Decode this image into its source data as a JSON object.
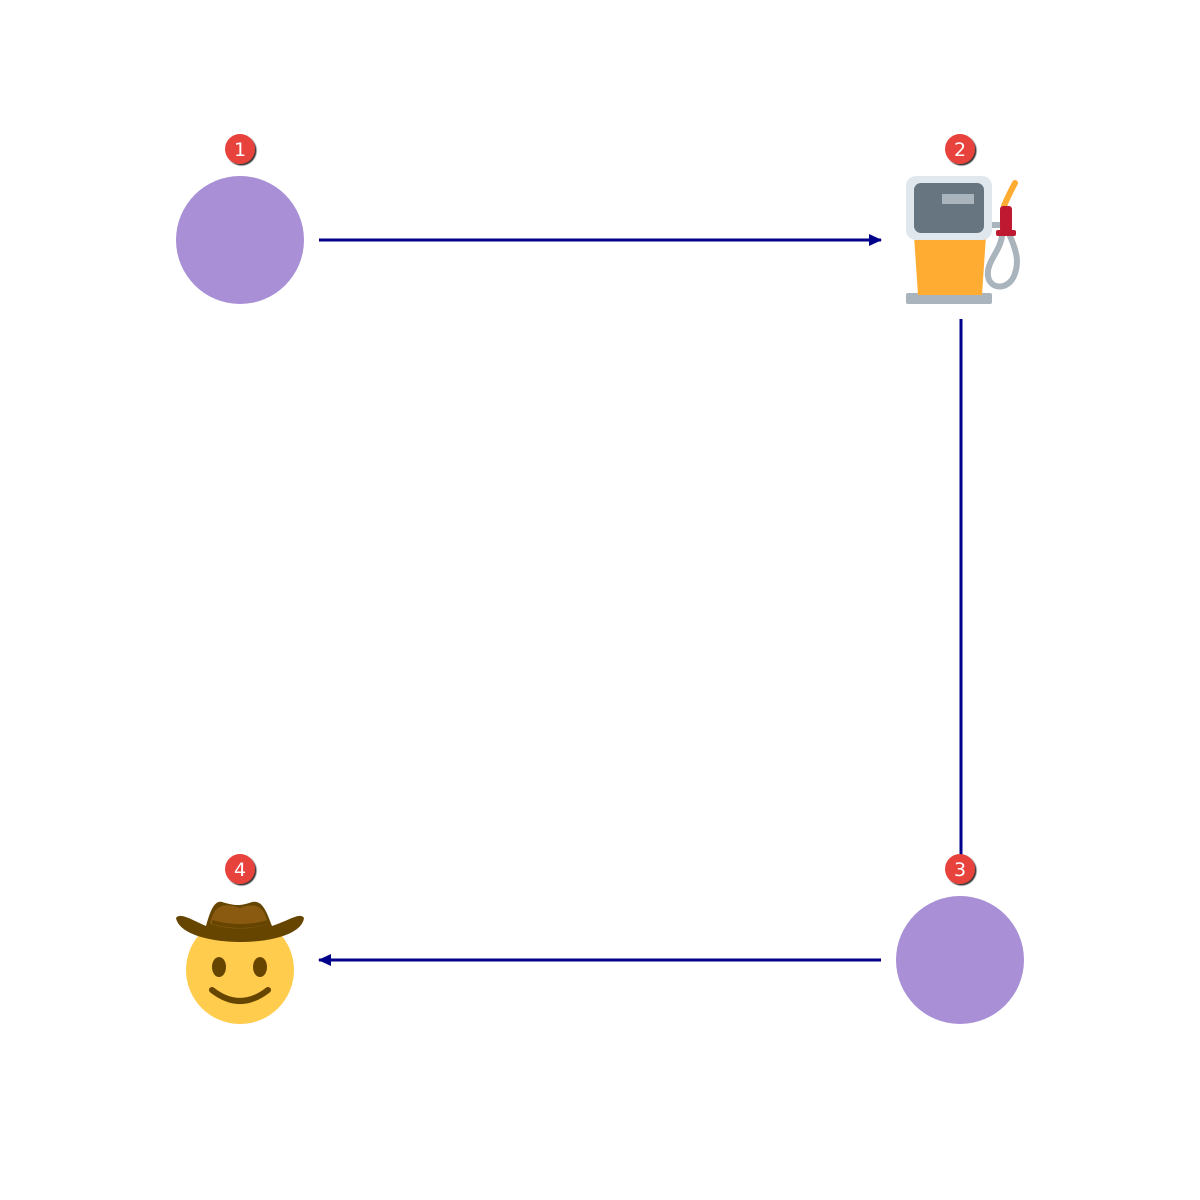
{
  "diagram": {
    "edge_color": "#00008b",
    "badge_color": "#e8423c",
    "nodes": [
      {
        "id": "n1",
        "badge": "1",
        "kind": "circle",
        "color": "#a98fd6"
      },
      {
        "id": "n2",
        "badge": "2",
        "kind": "fuel-pump-icon"
      },
      {
        "id": "n3",
        "badge": "3",
        "kind": "circle",
        "color": "#a98fd6"
      },
      {
        "id": "n4",
        "badge": "4",
        "kind": "cowboy-face-icon"
      }
    ],
    "edges": [
      {
        "from": "1",
        "to": "2",
        "arrow": true
      },
      {
        "from": "2",
        "to": "3",
        "arrow": false
      },
      {
        "from": "3",
        "to": "4",
        "arrow": true
      }
    ]
  }
}
